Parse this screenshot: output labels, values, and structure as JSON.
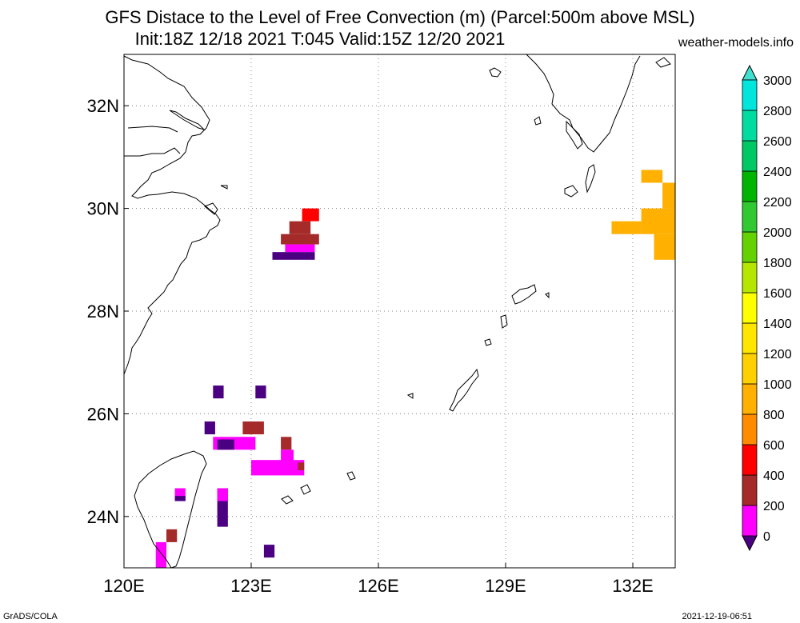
{
  "title": {
    "line1": "GFS Distace to the Level of Free Convection (m) (Parcel:500m above MSL)",
    "line2": "Init:18Z 12/18 2021 T:045 Valid:15Z 12/20 2021"
  },
  "site": "weather-models.info",
  "footer": {
    "left": "GrADS/COLA",
    "right": "2021-12-19-06:51"
  },
  "map": {
    "lon_range": [
      120,
      133
    ],
    "lat_range": [
      23,
      33
    ],
    "lon_ticks": [
      {
        "value": 120,
        "label": "120E"
      },
      {
        "value": 123,
        "label": "123E"
      },
      {
        "value": 126,
        "label": "126E"
      },
      {
        "value": 129,
        "label": "129E"
      },
      {
        "value": 132,
        "label": "132E"
      }
    ],
    "lat_ticks": [
      {
        "value": 24,
        "label": "24N"
      },
      {
        "value": 26,
        "label": "26N"
      },
      {
        "value": 28,
        "label": "28N"
      },
      {
        "value": 30,
        "label": "30N"
      },
      {
        "value": 32,
        "label": "32N"
      }
    ],
    "grid_lines": "dotted"
  },
  "colorbar": {
    "levels": [
      "0",
      "200",
      "400",
      "600",
      "800",
      "1000",
      "1200",
      "1400",
      "1600",
      "1800",
      "2000",
      "2200",
      "2400",
      "2600",
      "2800",
      "3000"
    ],
    "colors": [
      "#4b0082",
      "#ff00ff",
      "#a52a2a",
      "#ff0000",
      "#ff8c00",
      "#ffb000",
      "#ffd000",
      "#ffe600",
      "#ffff00",
      "#b4e600",
      "#64d200",
      "#32c832",
      "#00b400",
      "#00c864",
      "#00dca0",
      "#00e6dc",
      "#40e0d0"
    ]
  },
  "field": [
    {
      "lon": 124.2,
      "lat": 29.75,
      "w": 0.4,
      "h": 0.25,
      "c": "#ff0000"
    },
    {
      "lon": 123.9,
      "lat": 29.5,
      "w": 0.5,
      "h": 0.25,
      "c": "#a52a2a"
    },
    {
      "lon": 123.7,
      "lat": 29.3,
      "w": 0.9,
      "h": 0.2,
      "c": "#a52a2a"
    },
    {
      "lon": 123.8,
      "lat": 29.15,
      "w": 0.7,
      "h": 0.15,
      "c": "#ff00ff"
    },
    {
      "lon": 123.5,
      "lat": 29.0,
      "w": 1.0,
      "h": 0.15,
      "c": "#4b0082"
    },
    {
      "lon": 122.1,
      "lat": 26.3,
      "w": 0.25,
      "h": 0.25,
      "c": "#4b0082"
    },
    {
      "lon": 123.1,
      "lat": 26.3,
      "w": 0.25,
      "h": 0.25,
      "c": "#4b0082"
    },
    {
      "lon": 121.9,
      "lat": 25.6,
      "w": 0.25,
      "h": 0.25,
      "c": "#4b0082"
    },
    {
      "lon": 122.8,
      "lat": 25.6,
      "w": 0.5,
      "h": 0.25,
      "c": "#a52a2a"
    },
    {
      "lon": 122.1,
      "lat": 25.3,
      "w": 1.0,
      "h": 0.25,
      "c": "#ff00ff"
    },
    {
      "lon": 122.2,
      "lat": 25.3,
      "w": 0.4,
      "h": 0.2,
      "c": "#4b0082"
    },
    {
      "lon": 123.7,
      "lat": 25.3,
      "w": 0.25,
      "h": 0.25,
      "c": "#a52a2a"
    },
    {
      "lon": 123.0,
      "lat": 24.8,
      "w": 1.25,
      "h": 0.3,
      "c": "#ff00ff"
    },
    {
      "lon": 123.7,
      "lat": 25.05,
      "w": 0.3,
      "h": 0.25,
      "c": "#ff00ff"
    },
    {
      "lon": 124.1,
      "lat": 24.9,
      "w": 0.15,
      "h": 0.15,
      "c": "#a52a2a"
    },
    {
      "lon": 121.2,
      "lat": 24.3,
      "w": 0.25,
      "h": 0.25,
      "c": "#ff00ff"
    },
    {
      "lon": 121.2,
      "lat": 24.3,
      "w": 0.25,
      "h": 0.1,
      "c": "#4b0082"
    },
    {
      "lon": 122.2,
      "lat": 23.8,
      "w": 0.25,
      "h": 0.75,
      "c": "#4b0082"
    },
    {
      "lon": 122.2,
      "lat": 24.3,
      "w": 0.25,
      "h": 0.25,
      "c": "#ff00ff"
    },
    {
      "lon": 121.0,
      "lat": 23.5,
      "w": 0.25,
      "h": 0.25,
      "c": "#a52a2a"
    },
    {
      "lon": 120.75,
      "lat": 23.0,
      "w": 0.25,
      "h": 0.5,
      "c": "#ff00ff"
    },
    {
      "lon": 123.3,
      "lat": 23.2,
      "w": 0.25,
      "h": 0.25,
      "c": "#4b0082"
    },
    {
      "lon": 132.2,
      "lat": 30.5,
      "w": 0.5,
      "h": 0.25,
      "c": "#ffb000"
    },
    {
      "lon": 132.7,
      "lat": 30.0,
      "w": 0.3,
      "h": 0.5,
      "c": "#ffb000"
    },
    {
      "lon": 132.2,
      "lat": 29.5,
      "w": 0.8,
      "h": 0.5,
      "c": "#ffb000"
    },
    {
      "lon": 131.5,
      "lat": 29.5,
      "w": 0.7,
      "h": 0.25,
      "c": "#ffb000"
    },
    {
      "lon": 132.5,
      "lat": 29.0,
      "w": 0.5,
      "h": 0.5,
      "c": "#ffb000"
    }
  ]
}
